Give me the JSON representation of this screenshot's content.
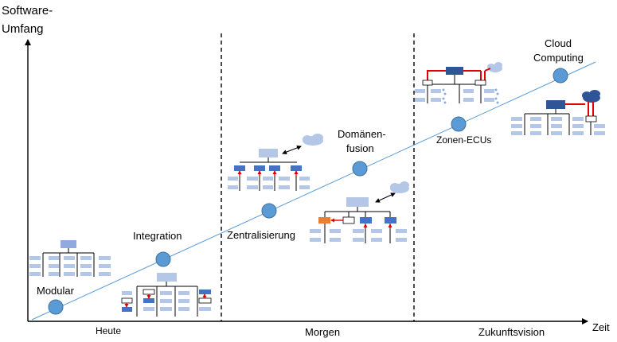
{
  "axes": {
    "y_label_line1": "Software-",
    "y_label_line2": "Umfang",
    "x_label": "Zeit"
  },
  "phases": [
    {
      "label": "Heute"
    },
    {
      "label": "Morgen"
    },
    {
      "label": "Zukunftsvision"
    }
  ],
  "stages": [
    {
      "label": "Modular"
    },
    {
      "label": "Integration"
    },
    {
      "label": "Zentralisierung"
    },
    {
      "label_line1": "Domänen-",
      "label_line2": "fusion"
    },
    {
      "label": "Zonen-ECUs"
    },
    {
      "label_line1": "Cloud",
      "label_line2": "Computing"
    }
  ],
  "colors": {
    "trend_line": "#5b9bd5",
    "stage_marker": "#5b9bd5",
    "ecu_light": "#b4c7e7",
    "ecu_dark": "#4472c4",
    "ecu_dark_navy": "#2f5597",
    "ecu_orange": "#ed7d31",
    "link_red": "#e00000",
    "cloud_light": "#b4c7e7",
    "cloud_dark": "#2f5597"
  }
}
